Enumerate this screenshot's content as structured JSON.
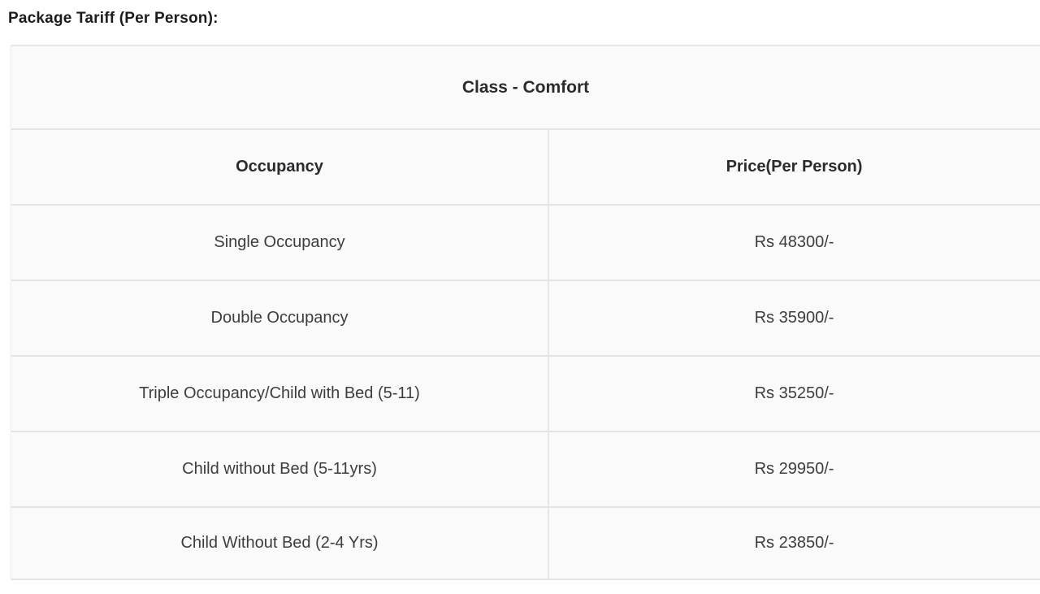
{
  "page": {
    "title": "Package Tariff (Per Person):"
  },
  "table": {
    "class_header": "Class - Comfort",
    "columns": {
      "occupancy": "Occupancy",
      "price": "Price(Per Person)"
    },
    "rows": [
      {
        "occupancy": "Single Occupancy",
        "price": "Rs 48300/-"
      },
      {
        "occupancy": "Double Occupancy",
        "price": "Rs 35900/-"
      },
      {
        "occupancy": "Triple Occupancy/Child with Bed (5-11)",
        "price": "Rs 35250/-"
      },
      {
        "occupancy": "Child without Bed (5-11yrs)",
        "price": "Rs 29950/-"
      },
      {
        "occupancy": "Child Without Bed (2-4 Yrs)",
        "price": "Rs 23850/-"
      }
    ],
    "colors": {
      "cell_background": "#fafafb",
      "border": "#e4e4e6",
      "header_text": "#2b2b2d",
      "body_text": "#3d3d3f"
    }
  }
}
